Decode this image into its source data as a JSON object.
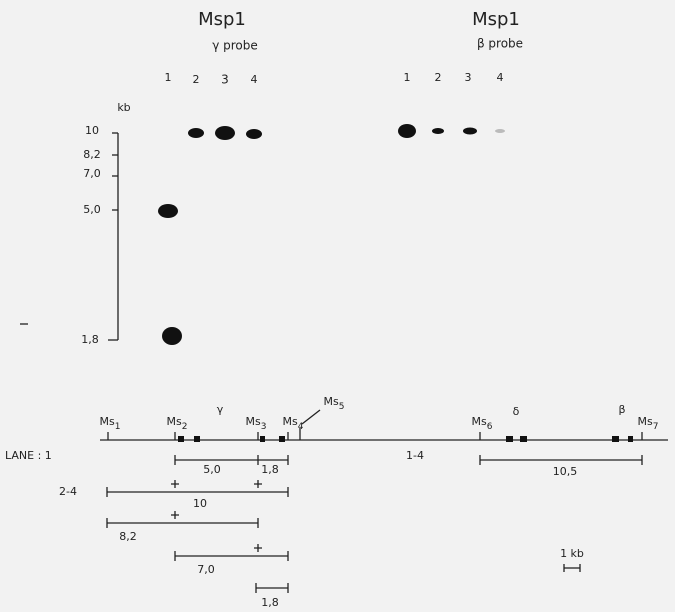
{
  "left_panel": {
    "enzyme": "Msp1",
    "probe": "γ probe",
    "lanes": [
      "1",
      "2",
      "3",
      "4"
    ],
    "size_unit": "kb",
    "size_markers": [
      "10",
      "8,2",
      "7,0",
      "5,0",
      "1,8"
    ]
  },
  "right_panel": {
    "enzyme": "Msp1",
    "probe": "β probe",
    "lanes": [
      "1",
      "2",
      "3",
      "4"
    ]
  },
  "map": {
    "sites": [
      {
        "name": "Ms",
        "index": "1"
      },
      {
        "name": "Ms",
        "index": "2"
      },
      {
        "name": "Ms",
        "index": "3"
      },
      {
        "name": "Ms",
        "index": "4"
      },
      {
        "name": "Ms",
        "index": "5"
      },
      {
        "name": "Ms",
        "index": "6"
      },
      {
        "name": "Ms",
        "index": "7"
      }
    ],
    "genes": [
      "γ",
      "δ",
      "β"
    ],
    "lane_labels": [
      "LANE : 1",
      "1-4",
      "2-4"
    ],
    "fragments": [
      "5,0",
      "1,8",
      "10,5",
      "10",
      "8,2",
      "7,0",
      "1,8"
    ],
    "scale": "1 kb"
  }
}
